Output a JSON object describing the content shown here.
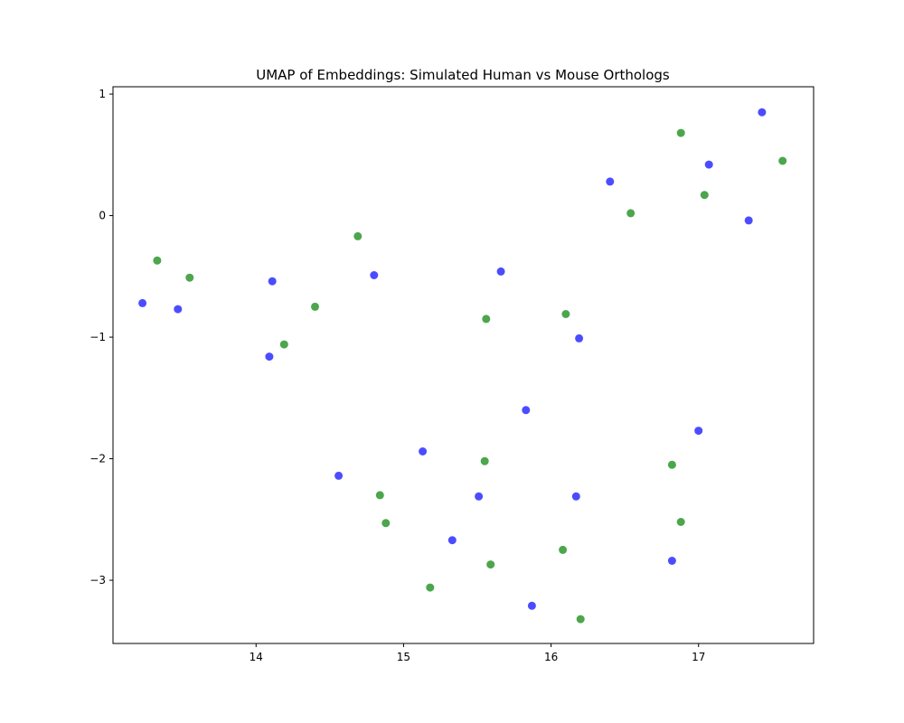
{
  "chart_data": {
    "type": "scatter",
    "title": "UMAP of Embeddings: Simulated Human vs Mouse Orthologs",
    "xlabel": "",
    "ylabel": "",
    "xlim": [
      13.03,
      17.78
    ],
    "ylim": [
      -3.52,
      1.06
    ],
    "xticks": [
      14,
      15,
      16,
      17
    ],
    "yticks": [
      1,
      0,
      -1,
      -2,
      -3
    ],
    "xtick_labels": [
      "14",
      "15",
      "16",
      "17"
    ],
    "ytick_labels": [
      "1",
      "0",
      "−1",
      "−2",
      "−3"
    ],
    "grid": false,
    "legend": false,
    "series": [
      {
        "color": "#0000ff",
        "points": [
          [
            13.23,
            -0.72
          ],
          [
            13.47,
            -0.77
          ],
          [
            14.11,
            -0.54
          ],
          [
            14.09,
            -1.16
          ],
          [
            14.8,
            -0.49
          ],
          [
            14.56,
            -2.14
          ],
          [
            15.13,
            -1.94
          ],
          [
            15.33,
            -2.67
          ],
          [
            15.51,
            -2.31
          ],
          [
            15.66,
            -0.46
          ],
          [
            15.83,
            -1.6
          ],
          [
            15.87,
            -3.21
          ],
          [
            16.17,
            -2.31
          ],
          [
            16.19,
            -1.01
          ],
          [
            16.4,
            0.28
          ],
          [
            16.82,
            -2.84
          ],
          [
            17.0,
            -1.77
          ],
          [
            17.07,
            0.42
          ],
          [
            17.34,
            -0.04
          ],
          [
            17.43,
            0.85
          ]
        ]
      },
      {
        "color": "#008000",
        "points": [
          [
            13.33,
            -0.37
          ],
          [
            13.55,
            -0.51
          ],
          [
            14.19,
            -1.06
          ],
          [
            14.4,
            -0.75
          ],
          [
            14.69,
            -0.17
          ],
          [
            14.84,
            -2.3
          ],
          [
            14.88,
            -2.53
          ],
          [
            15.18,
            -3.06
          ],
          [
            15.55,
            -2.02
          ],
          [
            15.56,
            -0.85
          ],
          [
            15.59,
            -2.87
          ],
          [
            16.08,
            -2.75
          ],
          [
            16.1,
            -0.81
          ],
          [
            16.2,
            -3.32
          ],
          [
            16.54,
            0.02
          ],
          [
            16.82,
            -2.05
          ],
          [
            16.88,
            -2.52
          ],
          [
            16.88,
            0.68
          ],
          [
            17.04,
            0.17
          ],
          [
            17.57,
            0.45
          ]
        ]
      }
    ]
  }
}
